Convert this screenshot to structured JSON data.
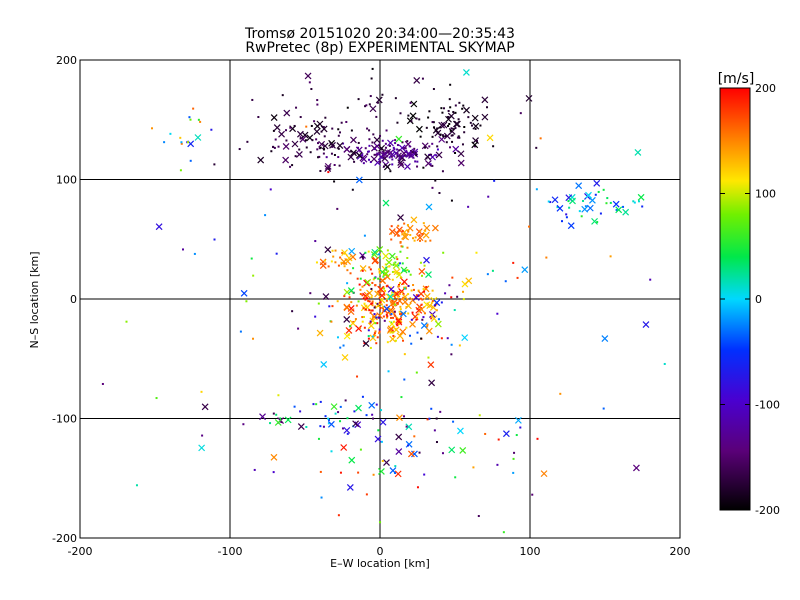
{
  "chart_data": {
    "type": "scatter",
    "title": "Tromsø 20151020 20:34:00—20:35:43",
    "subtitle": "RwPretec (8p) EXPERIMENTAL SKYMAP",
    "xlabel": "E–W location [km]",
    "ylabel": "N–S location [km]",
    "xlim": [
      -200,
      200
    ],
    "ylim": [
      -200,
      200
    ],
    "x_ticks": [
      -200,
      -100,
      0,
      100,
      200
    ],
    "y_ticks": [
      -200,
      -100,
      0,
      100,
      200
    ],
    "grid": true,
    "colorbar": {
      "label": "[m/s]",
      "range": [
        -200,
        200
      ],
      "ticks": [
        -200,
        -100,
        0,
        100,
        200
      ],
      "colormap": "rainbow (black-purple-blue-cyan-green-yellow-orange-red)"
    },
    "clusters": [
      {
        "name": "north-arc-dense",
        "cx": 10,
        "cy": 122,
        "sx": 15,
        "sy": 6,
        "count": 120,
        "vmin": -170,
        "vmax": -110
      },
      {
        "name": "north-arc-west",
        "cx": -45,
        "cy": 130,
        "sx": 18,
        "sy": 10,
        "count": 70,
        "vmin": -200,
        "vmax": -150
      },
      {
        "name": "north-arc-east",
        "cx": 45,
        "cy": 148,
        "sx": 12,
        "sy": 10,
        "count": 70,
        "vmin": -200,
        "vmax": -170
      },
      {
        "name": "north-scatter",
        "cx": 0,
        "cy": 140,
        "sx": 45,
        "sy": 30,
        "count": 90,
        "vmin": -200,
        "vmax": -150
      },
      {
        "name": "center-core",
        "cx": 8,
        "cy": -5,
        "sx": 14,
        "sy": 14,
        "count": 220,
        "vmin": 110,
        "vmax": 200
      },
      {
        "name": "center-halo",
        "cx": 5,
        "cy": -10,
        "sx": 28,
        "sy": 22,
        "count": 120,
        "vmin": -200,
        "vmax": 200
      },
      {
        "name": "mid-column",
        "cx": 8,
        "cy": 28,
        "sx": 10,
        "sy": 8,
        "count": 50,
        "vmin": 20,
        "vmax": 130
      },
      {
        "name": "mid-upper-orange",
        "cx": 20,
        "cy": 55,
        "sx": 8,
        "sy": 6,
        "count": 40,
        "vmin": 130,
        "vmax": 175
      },
      {
        "name": "west-orange",
        "cx": -28,
        "cy": 32,
        "sx": 6,
        "sy": 5,
        "count": 25,
        "vmin": 110,
        "vmax": 170
      },
      {
        "name": "east-right-group",
        "cx": 145,
        "cy": 78,
        "sx": 18,
        "sy": 8,
        "count": 45,
        "vmin": -80,
        "vmax": 60
      },
      {
        "name": "west-upper-group",
        "cx": -128,
        "cy": 135,
        "sx": 10,
        "sy": 10,
        "count": 18,
        "vmin": -80,
        "vmax": 170
      },
      {
        "name": "south-band",
        "cx": -25,
        "cy": -100,
        "sx": 40,
        "sy": 8,
        "count": 60,
        "vmin": -180,
        "vmax": 60
      },
      {
        "name": "south-lower",
        "cx": 20,
        "cy": -140,
        "sx": 45,
        "sy": 20,
        "count": 45,
        "vmin": -200,
        "vmax": 200
      },
      {
        "name": "sparse-field",
        "cx": 0,
        "cy": 0,
        "sx": 110,
        "sy": 110,
        "count": 90,
        "vmin": -200,
        "vmax": 200
      }
    ]
  }
}
